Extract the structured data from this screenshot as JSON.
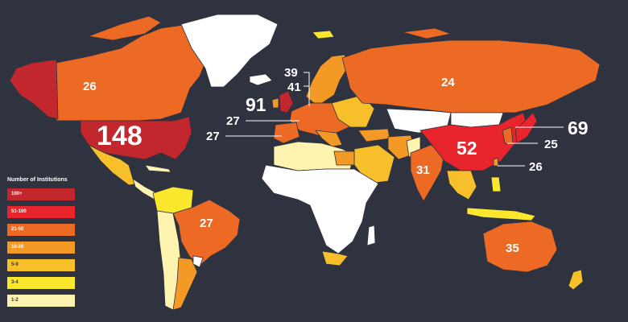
{
  "legend": {
    "title": "Number of Institutions",
    "items": [
      {
        "label": "100+",
        "color": "#c1272d"
      },
      {
        "label": "51-100",
        "color": "#e8242d"
      },
      {
        "label": "21-50",
        "color": "#ec6a24"
      },
      {
        "label": "10-20",
        "color": "#f39a26"
      },
      {
        "label": "5-9",
        "color": "#f7c02a"
      },
      {
        "label": "3-4",
        "color": "#fbe72b"
      },
      {
        "label": "1-2",
        "color": "#fff3b0"
      }
    ]
  },
  "countries": {
    "usa": "148",
    "canada": "26",
    "uk": "91",
    "china": "52",
    "japan": "69",
    "russia": "24",
    "australia": "35",
    "brazil": "27",
    "india": "31",
    "sweden": "39",
    "netherlands": "41",
    "france": "27",
    "spain": "27",
    "south_korea": "25",
    "taiwan": "26"
  },
  "colors": {
    "background": "#2f323f",
    "no_data": "#ffffff",
    "label_text": "#ffffff"
  }
}
